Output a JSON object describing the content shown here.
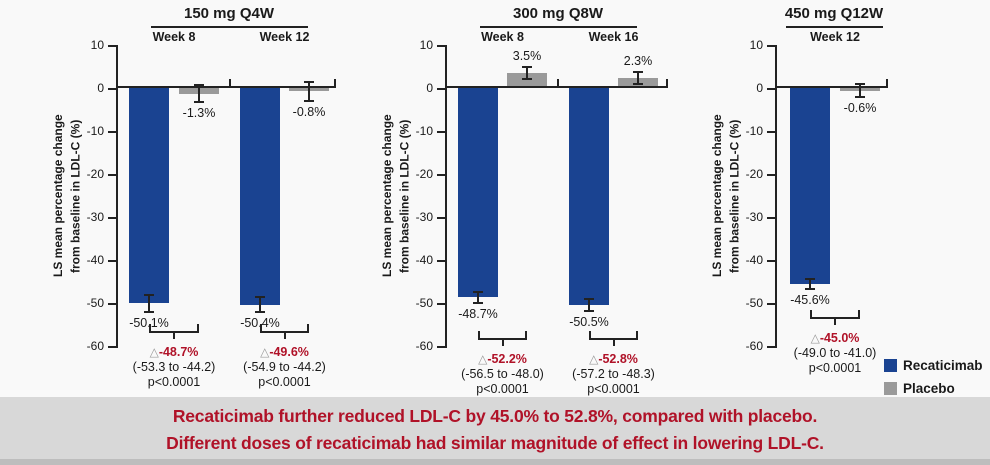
{
  "colors": {
    "recaticimab": "#1a4391",
    "placebo": "#9a9a9a",
    "delta_text": "#b01228",
    "banner_text": "#b01228",
    "banner_bg": "#d8d8d8",
    "page_bg": "#f9f9f9",
    "axis_ink": "#222222"
  },
  "y_axis": {
    "line1": "LS mean percentage change",
    "line2": "from baseline in LDL-C (%)",
    "ticks": [
      10,
      0,
      -10,
      -20,
      -30,
      -40,
      -50,
      -60
    ]
  },
  "legend": {
    "items": [
      {
        "label": "Recaticimab",
        "color": "#1a4391"
      },
      {
        "label": "Placebo",
        "color": "#9a9a9a"
      }
    ]
  },
  "banner": {
    "line1": "Recaticimab further reduced LDL-C by 45.0% to 52.8%, compared with placebo.",
    "line2": "Different doses of recaticimab had similar magnitude of effect in lowering LDL-C."
  },
  "chart_data": [
    {
      "type": "bar",
      "title": "150 mg Q4W",
      "ylabel": "LS mean percentage change from baseline in LDL-C (%)",
      "ylim": [
        -60,
        10
      ],
      "yticks": [
        10,
        0,
        -10,
        -20,
        -30,
        -40,
        -50,
        -60
      ],
      "series_names": [
        "Recaticimab",
        "Placebo"
      ],
      "groups": [
        {
          "timepoint": "Week 8",
          "bars": [
            {
              "series": "Recaticimab",
              "value": -50.1,
              "err": 2.2,
              "label": "-50.1%"
            },
            {
              "series": "Placebo",
              "value": -1.3,
              "err": 2.2,
              "label": "-1.3%"
            }
          ],
          "comparison": {
            "symbol": "△",
            "delta": "-48.7%",
            "ci": "(-53.3 to -44.2)",
            "p": "p<0.0001"
          }
        },
        {
          "timepoint": "Week 12",
          "bars": [
            {
              "series": "Recaticimab",
              "value": -50.4,
              "err": 2.0,
              "label": "-50.4%"
            },
            {
              "series": "Placebo",
              "value": -0.8,
              "err": 2.4,
              "label": "-0.8%"
            }
          ],
          "comparison": {
            "symbol": "△",
            "delta": "-49.6%",
            "ci": "(-54.9 to -44.2)",
            "p": "p<0.0001"
          }
        }
      ]
    },
    {
      "type": "bar",
      "title": "300 mg Q8W",
      "ylabel": "LS mean percentage change from baseline in LDL-C (%)",
      "ylim": [
        -60,
        10
      ],
      "yticks": [
        10,
        0,
        -10,
        -20,
        -30,
        -40,
        -50,
        -60
      ],
      "series_names": [
        "Recaticimab",
        "Placebo"
      ],
      "groups": [
        {
          "timepoint": "Week 8",
          "bars": [
            {
              "series": "Recaticimab",
              "value": -48.7,
              "err": 1.6,
              "label": "-48.7%"
            },
            {
              "series": "Placebo",
              "value": 3.5,
              "err": 1.7,
              "label": "3.5%"
            }
          ],
          "comparison": {
            "symbol": "△",
            "delta": "-52.2%",
            "ci": "(-56.5 to -48.0)",
            "p": "p<0.0001"
          }
        },
        {
          "timepoint": "Week 16",
          "bars": [
            {
              "series": "Recaticimab",
              "value": -50.5,
              "err": 1.6,
              "label": "-50.5%"
            },
            {
              "series": "Placebo",
              "value": 2.3,
              "err": 1.7,
              "label": "2.3%"
            }
          ],
          "comparison": {
            "symbol": "△",
            "delta": "-52.8%",
            "ci": "(-57.2 to -48.3)",
            "p": "p<0.0001"
          }
        }
      ]
    },
    {
      "type": "bar",
      "title": "450 mg Q12W",
      "ylabel": "LS mean percentage change from baseline in LDL-C (%)",
      "ylim": [
        -60,
        10
      ],
      "yticks": [
        10,
        0,
        -10,
        -20,
        -30,
        -40,
        -50,
        -60
      ],
      "series_names": [
        "Recaticimab",
        "Placebo"
      ],
      "groups": [
        {
          "timepoint": "Week 12",
          "bars": [
            {
              "series": "Recaticimab",
              "value": -45.6,
              "err": 1.4,
              "label": "-45.6%"
            },
            {
              "series": "Placebo",
              "value": -0.6,
              "err": 1.8,
              "label": "-0.6%"
            }
          ],
          "comparison": {
            "symbol": "△",
            "delta": "-45.0%",
            "ci": "(-49.0 to -41.0)",
            "p": "p<0.0001"
          }
        }
      ]
    }
  ]
}
